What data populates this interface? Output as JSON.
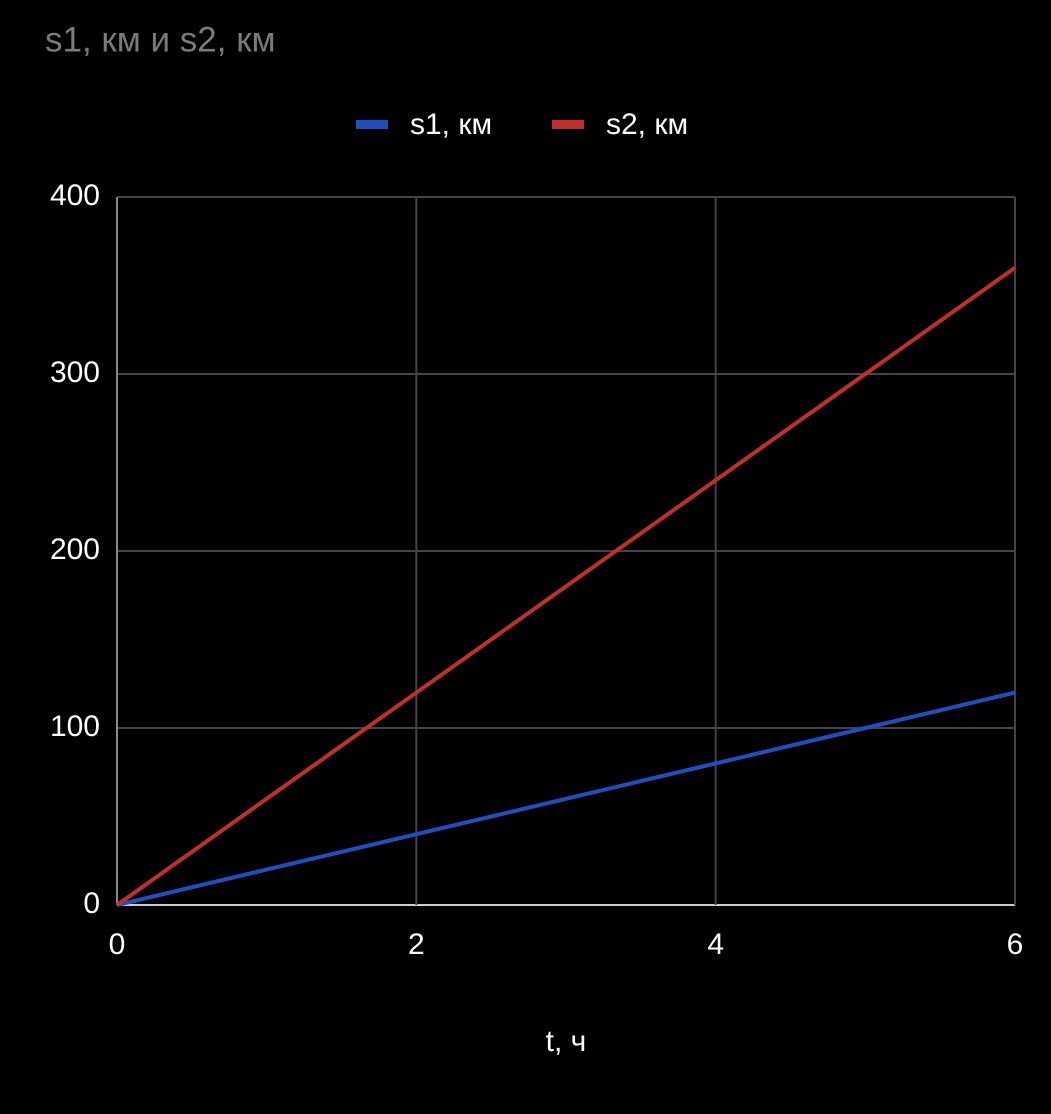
{
  "chart_data": {
    "type": "line",
    "title": "s1, км и s2, км",
    "x_label": "t, ч",
    "x": [
      0,
      1,
      2,
      3,
      4,
      5,
      6
    ],
    "series": [
      {
        "name": "s1, км",
        "color": "#1f4fbf",
        "values": [
          0,
          20,
          40,
          60,
          80,
          100,
          120
        ]
      },
      {
        "name": "s2, км",
        "color": "#c0302a",
        "values": [
          0,
          60,
          120,
          180,
          240,
          300,
          360
        ]
      }
    ],
    "xlim": [
      0,
      6
    ],
    "xticks": [
      0,
      2,
      4,
      6
    ],
    "ylim": [
      0,
      400
    ],
    "yticks": [
      0,
      100,
      200,
      300,
      400
    ],
    "grid": true,
    "legend": "top"
  }
}
